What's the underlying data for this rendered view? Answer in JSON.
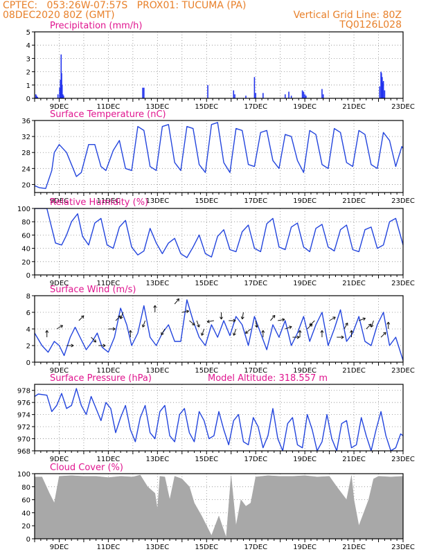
{
  "header": {
    "line1": "CPTEC:   053:26W-07:57S   PROX01: TUCUMA (PA)",
    "line2": "08DEC2020 80Z (GMT)",
    "grid_note": "Vertical Grid Line: 80Z",
    "run_code": "TQ0126L028"
  },
  "colors": {
    "accent": "#e8802a",
    "title": "#e0158f",
    "series": "#2244dd",
    "bar": "#2233ee",
    "cloud": "#a8a8a8"
  },
  "chart_data": [
    {
      "type": "bar",
      "title": "Precipitation (mm/h)",
      "ylim": [
        0,
        5
      ],
      "yticks": [
        0,
        1,
        2,
        3,
        4,
        5
      ],
      "xticks": [
        "9DEC",
        "11DEC",
        "13DEC",
        "15DEC",
        "17DEC",
        "19DEC",
        "21DEC",
        "23DEC"
      ],
      "xdays": [
        1.0,
        3.0,
        5.0,
        7.0,
        9.0,
        11.0,
        13.0,
        15.0
      ],
      "x": [
        0.05,
        0.08,
        0.12,
        0.95,
        1.02,
        1.05,
        1.08,
        1.1,
        1.12,
        1.15,
        1.18,
        4.4,
        4.45,
        7.05,
        8.1,
        8.15,
        8.6,
        8.95,
        9.0,
        9.3,
        10.2,
        10.35,
        10.45,
        10.9,
        10.95,
        11.0,
        11.05,
        11.7,
        11.75,
        14.05,
        14.1,
        14.12,
        14.15,
        14.18,
        14.2,
        14.25
      ],
      "values": [
        0.3,
        0.2,
        0.1,
        0.3,
        0.8,
        1.4,
        3.3,
        1.9,
        1.0,
        0.3,
        0.2,
        0.8,
        0.8,
        1.0,
        0.6,
        0.3,
        0.2,
        1.6,
        0.4,
        0.4,
        0.3,
        0.5,
        0.2,
        0.6,
        0.5,
        0.3,
        0.2,
        0.7,
        0.3,
        0.9,
        2.0,
        1.9,
        1.6,
        1.2,
        1.3,
        0.6
      ]
    },
    {
      "type": "line",
      "title": "Surface Temperature (nC)",
      "ylim": [
        18,
        36
      ],
      "yticks": [
        20,
        24,
        28,
        32,
        36
      ],
      "xticks": [
        "9DEC",
        "11DEC",
        "13DEC",
        "15DEC",
        "17DEC",
        "19DEC",
        "21DEC",
        "23DEC"
      ],
      "xdays": [
        1.0,
        3.0,
        5.0,
        7.0,
        9.0,
        11.0,
        13.0,
        15.0
      ],
      "x": [
        0.0,
        0.2,
        0.45,
        0.7,
        0.8,
        1.0,
        1.3,
        1.7,
        1.9,
        2.2,
        2.45,
        2.7,
        2.9,
        3.2,
        3.45,
        3.7,
        3.95,
        4.2,
        4.45,
        4.7,
        4.95,
        5.2,
        5.45,
        5.7,
        5.95,
        6.2,
        6.45,
        6.7,
        6.95,
        7.2,
        7.45,
        7.7,
        7.95,
        8.2,
        8.45,
        8.7,
        8.95,
        9.2,
        9.45,
        9.7,
        9.95,
        10.2,
        10.45,
        10.7,
        10.95,
        11.2,
        11.45,
        11.7,
        11.95,
        12.2,
        12.45,
        12.7,
        12.95,
        13.2,
        13.45,
        13.7,
        13.95,
        14.2,
        14.45,
        14.7,
        14.95,
        15.0
      ],
      "values": [
        19.7,
        19.2,
        19.0,
        23.5,
        28.0,
        30.0,
        28.0,
        22.0,
        23.0,
        30.0,
        30.0,
        24.5,
        23.5,
        28.5,
        31.0,
        24.0,
        23.5,
        34.5,
        33.5,
        24.5,
        23.5,
        34.5,
        35.0,
        25.5,
        23.5,
        34.5,
        34.0,
        25.0,
        23.0,
        35.0,
        35.5,
        25.5,
        23.0,
        34.0,
        33.5,
        25.0,
        24.5,
        33.0,
        33.5,
        26.0,
        24.0,
        32.5,
        32.0,
        26.0,
        23.0,
        33.5,
        32.5,
        25.0,
        24.0,
        34.0,
        33.0,
        25.5,
        24.5,
        33.5,
        32.5,
        25.0,
        24.0,
        33.0,
        31.0,
        24.5,
        29.5,
        29.0
      ]
    },
    {
      "type": "line",
      "title": "Relative Humidity (%)",
      "ylim": [
        0,
        100
      ],
      "yticks": [
        0,
        20,
        40,
        60,
        80,
        100
      ],
      "xticks": [
        "9DEC",
        "11DEC",
        "13DEC",
        "15DEC",
        "17DEC",
        "19DEC",
        "21DEC",
        "23DEC"
      ],
      "xdays": [
        1.0,
        3.0,
        5.0,
        7.0,
        9.0,
        11.0,
        13.0,
        15.0
      ],
      "x": [
        0.0,
        0.5,
        0.85,
        1.1,
        1.3,
        1.5,
        1.75,
        1.95,
        2.2,
        2.45,
        2.7,
        2.95,
        3.2,
        3.45,
        3.7,
        3.95,
        4.2,
        4.45,
        4.7,
        4.95,
        5.2,
        5.45,
        5.7,
        5.95,
        6.2,
        6.45,
        6.7,
        6.95,
        7.2,
        7.45,
        7.7,
        7.95,
        8.2,
        8.45,
        8.7,
        8.95,
        9.2,
        9.45,
        9.7,
        9.95,
        10.2,
        10.45,
        10.7,
        10.95,
        11.2,
        11.45,
        11.7,
        11.95,
        12.2,
        12.45,
        12.7,
        12.95,
        13.2,
        13.45,
        13.7,
        13.95,
        14.2,
        14.45,
        14.7,
        15.0
      ],
      "values": [
        100,
        100,
        48,
        45,
        60,
        80,
        92,
        58,
        45,
        78,
        85,
        45,
        40,
        72,
        82,
        42,
        30,
        36,
        70,
        48,
        32,
        48,
        55,
        32,
        26,
        42,
        60,
        32,
        27,
        58,
        68,
        38,
        35,
        65,
        75,
        40,
        35,
        77,
        85,
        42,
        38,
        72,
        78,
        42,
        35,
        70,
        76,
        42,
        36,
        68,
        75,
        38,
        35,
        68,
        72,
        40,
        45,
        80,
        85,
        45
      ]
    },
    {
      "type": "line",
      "title": "Surface Wind (m/s)",
      "ylim": [
        0,
        8
      ],
      "yticks": [
        0,
        2,
        4,
        6,
        8
      ],
      "xticks": [
        "9DEC",
        "11DEC",
        "13DEC",
        "15DEC",
        "17DEC",
        "19DEC",
        "21DEC",
        "23DEC"
      ],
      "xdays": [
        1.0,
        3.0,
        5.0,
        7.0,
        9.0,
        11.0,
        13.0,
        15.0
      ],
      "x": [
        0.0,
        0.3,
        0.55,
        0.8,
        1.0,
        1.2,
        1.45,
        1.65,
        1.85,
        2.1,
        2.35,
        2.55,
        2.75,
        3.0,
        3.25,
        3.5,
        3.75,
        3.95,
        4.2,
        4.45,
        4.7,
        4.95,
        5.2,
        5.45,
        5.7,
        5.95,
        6.2,
        6.45,
        6.7,
        6.95,
        7.2,
        7.45,
        7.7,
        7.95,
        8.2,
        8.45,
        8.7,
        8.95,
        9.2,
        9.45,
        9.7,
        9.95,
        10.2,
        10.45,
        10.7,
        10.95,
        11.2,
        11.45,
        11.7,
        11.95,
        12.2,
        12.45,
        12.7,
        12.95,
        13.2,
        13.45,
        13.7,
        13.95,
        14.2,
        14.45,
        14.7,
        15.0
      ],
      "values": [
        3.5,
        2.0,
        1.2,
        2.5,
        2.0,
        0.8,
        3.0,
        4.2,
        3.0,
        1.5,
        2.5,
        3.5,
        1.8,
        1.2,
        3.0,
        6.5,
        4.5,
        2.0,
        3.5,
        6.8,
        3.0,
        2.0,
        3.5,
        4.5,
        2.5,
        2.5,
        7.5,
        5.0,
        3.0,
        2.0,
        4.5,
        3.0,
        5.0,
        3.2,
        5.5,
        4.5,
        2.0,
        5.5,
        3.5,
        1.5,
        4.5,
        3.0,
        5.0,
        2.0,
        3.5,
        5.5,
        2.5,
        4.5,
        6.0,
        2.0,
        4.0,
        6.3,
        2.5,
        3.5,
        5.5,
        2.5,
        2.0,
        4.5,
        6.0,
        2.0,
        3.0,
        0.2
      ]
    },
    {
      "type": "line",
      "title": "Surface Pressure (hPa)",
      "annotation": "Model Altitude: 318.557  m",
      "ylim": [
        968,
        979
      ],
      "yticks": [
        968,
        970,
        972,
        974,
        976,
        978
      ],
      "xticks": [
        "9DEC",
        "11DEC",
        "13DEC",
        "15DEC",
        "17DEC",
        "19DEC",
        "21DEC",
        "23DEC"
      ],
      "xdays": [
        1.0,
        3.0,
        5.0,
        7.0,
        9.0,
        11.0,
        13.0,
        15.0
      ],
      "x": [
        0.0,
        0.15,
        0.5,
        0.7,
        0.9,
        1.1,
        1.3,
        1.5,
        1.7,
        1.9,
        2.1,
        2.3,
        2.5,
        2.7,
        2.9,
        3.1,
        3.3,
        3.5,
        3.7,
        3.9,
        4.1,
        4.3,
        4.5,
        4.7,
        4.9,
        5.1,
        5.3,
        5.5,
        5.7,
        5.9,
        6.1,
        6.3,
        6.5,
        6.7,
        6.9,
        7.1,
        7.3,
        7.5,
        7.7,
        7.9,
        8.1,
        8.3,
        8.5,
        8.7,
        8.9,
        9.1,
        9.3,
        9.5,
        9.7,
        9.9,
        10.1,
        10.3,
        10.5,
        10.7,
        10.9,
        11.1,
        11.3,
        11.5,
        11.7,
        11.9,
        12.1,
        12.3,
        12.5,
        12.7,
        12.9,
        13.1,
        13.3,
        13.5,
        13.7,
        13.9,
        14.1,
        14.3,
        14.5,
        14.7,
        14.9,
        15.0
      ],
      "values": [
        977.0,
        977.4,
        977.2,
        974.5,
        975.5,
        977.5,
        975.0,
        975.5,
        978.3,
        975.5,
        974.0,
        977.0,
        975.0,
        973.0,
        976.0,
        975.0,
        971.0,
        973.5,
        975.5,
        971.5,
        969.5,
        973.5,
        975.5,
        971.0,
        970.0,
        974.5,
        975.5,
        970.5,
        969.5,
        974.0,
        975.0,
        971.0,
        969.5,
        974.5,
        973.0,
        970.0,
        970.5,
        974.5,
        971.5,
        969.0,
        973.0,
        974.0,
        969.5,
        969.0,
        973.5,
        972.0,
        968.5,
        970.5,
        975.0,
        970.0,
        968.0,
        972.5,
        973.5,
        969.0,
        968.5,
        974.0,
        971.5,
        968.0,
        969.5,
        974.0,
        970.0,
        968.0,
        972.5,
        973.0,
        968.5,
        969.0,
        973.5,
        970.5,
        968.0,
        971.5,
        974.5,
        970.5,
        968.0,
        968.5,
        970.8,
        970.5
      ]
    },
    {
      "type": "area",
      "title": "Cloud Cover (%)",
      "ylim": [
        0,
        100
      ],
      "yticks": [
        0,
        20,
        40,
        60,
        80,
        100
      ],
      "xticks": [
        "9DEC",
        "11DEC",
        "13DEC",
        "15DEC",
        "17DEC",
        "19DEC",
        "21DEC",
        "23DEC"
      ],
      "xdays": [
        1.0,
        3.0,
        5.0,
        7.0,
        9.0,
        11.0,
        13.0,
        15.0
      ],
      "x": [
        0.0,
        0.3,
        0.6,
        0.8,
        1.0,
        1.5,
        2.0,
        2.5,
        3.0,
        3.5,
        4.0,
        4.3,
        4.6,
        4.9,
        5.0,
        5.1,
        5.3,
        5.5,
        5.7,
        6.0,
        6.3,
        6.5,
        6.8,
        7.0,
        7.2,
        7.5,
        7.8,
        8.0,
        8.2,
        8.4,
        8.6,
        8.8,
        9.0,
        9.5,
        10.0,
        10.5,
        11.0,
        11.5,
        12.0,
        12.3,
        12.5,
        12.7,
        12.9,
        13.0,
        13.2,
        13.4,
        13.6,
        13.8,
        14.0,
        14.5,
        15.0
      ],
      "values": [
        95,
        95,
        70,
        55,
        96,
        97,
        96,
        96,
        94,
        96,
        95,
        98,
        80,
        70,
        45,
        96,
        95,
        60,
        96,
        92,
        80,
        55,
        35,
        20,
        5,
        35,
        2,
        97,
        20,
        60,
        50,
        55,
        95,
        97,
        96,
        96,
        97,
        95,
        96,
        80,
        70,
        60,
        97,
        60,
        20,
        40,
        60,
        92,
        96,
        95,
        96
      ]
    }
  ],
  "wind_vectors": {
    "x": [
      0.5,
      0.9,
      1.3,
      1.8,
      2.3,
      2.6,
      3.0,
      3.3,
      3.6,
      3.9,
      4.5,
      4.9,
      5.3,
      5.7,
      6.0,
      6.3,
      6.6,
      6.9,
      7.3,
      7.6,
      7.9,
      8.2,
      8.5,
      8.8,
      9.0,
      9.3,
      9.6,
      9.9,
      10.2,
      10.5,
      10.8,
      11.1,
      11.4,
      11.7,
      12.0,
      12.3,
      12.6,
      12.9,
      13.2,
      13.5,
      13.8,
      14.1,
      14.4
    ],
    "dir_deg": [
      0,
      60,
      90,
      45,
      135,
      90,
      90,
      45,
      200,
      0,
      200,
      0,
      210,
      40,
      80,
      130,
      160,
      200,
      260,
      180,
      90,
      200,
      190,
      230,
      170,
      0,
      40,
      80,
      70,
      90,
      0,
      45,
      225,
      0,
      60,
      90,
      30,
      0,
      70,
      45,
      200,
      45,
      0
    ],
    "speed": [
      3,
      4,
      2,
      5,
      3,
      2,
      4,
      5,
      6,
      3,
      5,
      6,
      4,
      7,
      6,
      5,
      5,
      4,
      5,
      6,
      5,
      4,
      6,
      4,
      5,
      3,
      5,
      5,
      4,
      3,
      3,
      4,
      5,
      3,
      5,
      3,
      4,
      3,
      5,
      4,
      5,
      3,
      4
    ]
  }
}
